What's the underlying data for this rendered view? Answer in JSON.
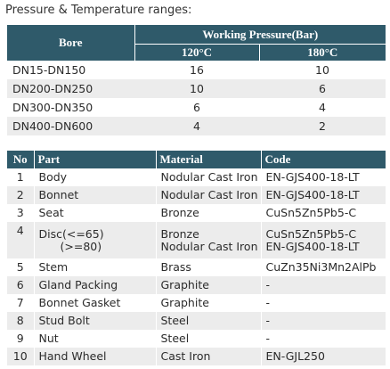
{
  "heading": "Pressure & Temperature ranges:",
  "pressure_table": {
    "col_bore": "Bore",
    "col_working_pressure": "Working Pressure(Bar)",
    "col_temp1": "120°C",
    "col_temp2": "180°C",
    "rows": [
      {
        "bore": "DN15-DN150",
        "p120": "16",
        "p180": "10"
      },
      {
        "bore": "DN200-DN250",
        "p120": "10",
        "p180": "6"
      },
      {
        "bore": "DN300-DN350",
        "p120": "6",
        "p180": "4"
      },
      {
        "bore": "DN400-DN600",
        "p120": "4",
        "p180": "2"
      }
    ]
  },
  "parts_table": {
    "col_no": "No",
    "col_part": "Part",
    "col_material": "Material",
    "col_code": "Code",
    "rows": [
      {
        "no": "1",
        "part": "Body",
        "material": "Nodular Cast Iron",
        "code": "EN-GJS400-18-LT"
      },
      {
        "no": "2",
        "part": "Bonnet",
        "material": "Nodular Cast Iron",
        "code": "EN-GJS400-18-LT"
      },
      {
        "no": "3",
        "part": "Seat",
        "material": "Bronze",
        "code": "CuSn5Zn5Pb5-C"
      },
      {
        "no": "4",
        "part": "Disc(<=65)",
        "part2": "(>=80)",
        "material": "Bronze",
        "material2": "Nodular Cast Iron",
        "code": "CuSn5Zn5Pb5-C",
        "code2": "EN-GJS400-18-LT"
      },
      {
        "no": "5",
        "part": "Stem",
        "material": "Brass",
        "code": "CuZn35Ni3Mn2AlPb"
      },
      {
        "no": "6",
        "part": "Gland Packing",
        "material": "Graphite",
        "code": "-"
      },
      {
        "no": "7",
        "part": "Bonnet Gasket",
        "material": "Graphite",
        "code": "-"
      },
      {
        "no": "8",
        "part": "Stud Bolt",
        "material": "Steel",
        "code": "-"
      },
      {
        "no": "9",
        "part": "Nut",
        "material": "Steel",
        "code": "-"
      },
      {
        "no": "10",
        "part": "Hand Wheel",
        "material": "Cast Iron",
        "code": "EN-GJL250"
      }
    ]
  }
}
